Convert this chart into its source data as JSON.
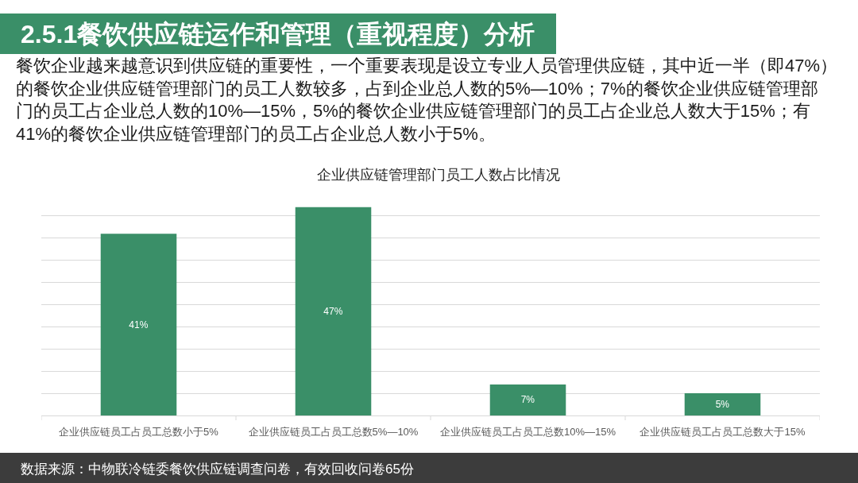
{
  "chart_data": {
    "type": "bar",
    "title": "企业供应链管理部门员工人数占比情况",
    "categories": [
      "企业供应链员工占员工总数小于5%",
      "企业供应链员工占员工总数5%—10%",
      "企业供应链员工占员工总数10%—15%",
      "企业供应链员工占员工总数大于15%"
    ],
    "values": [
      41,
      47,
      7,
      5
    ],
    "value_labels": [
      "41%",
      "47%",
      "7%",
      "5%"
    ],
    "color": "#3a8f68",
    "grid": "y",
    "tick_labels": "x",
    "annotations": [
      "2.5.1餐饮供应链运作和管理（重视程度）分析",
      "餐饮企业越来越意识到供应链的重要性，一个重要表现是设立专业人员管理供应链，其中近一半（即47%）的餐饮企业供应链管理部门的员工人数较多，占到企业总人数的5%—10%；7%的餐饮企业供应链管理部门的员工占企业总人数的10%—15%，5%的餐饮企业供应链管理部门的员工占企业总人数大于15%；有41%的餐饮企业供应链管理部门的员工占企业总人数小于5%。",
      "数据来源：中物联冷链委餐饮供应链调查问卷，有效回收问卷65份"
    ]
  }
}
